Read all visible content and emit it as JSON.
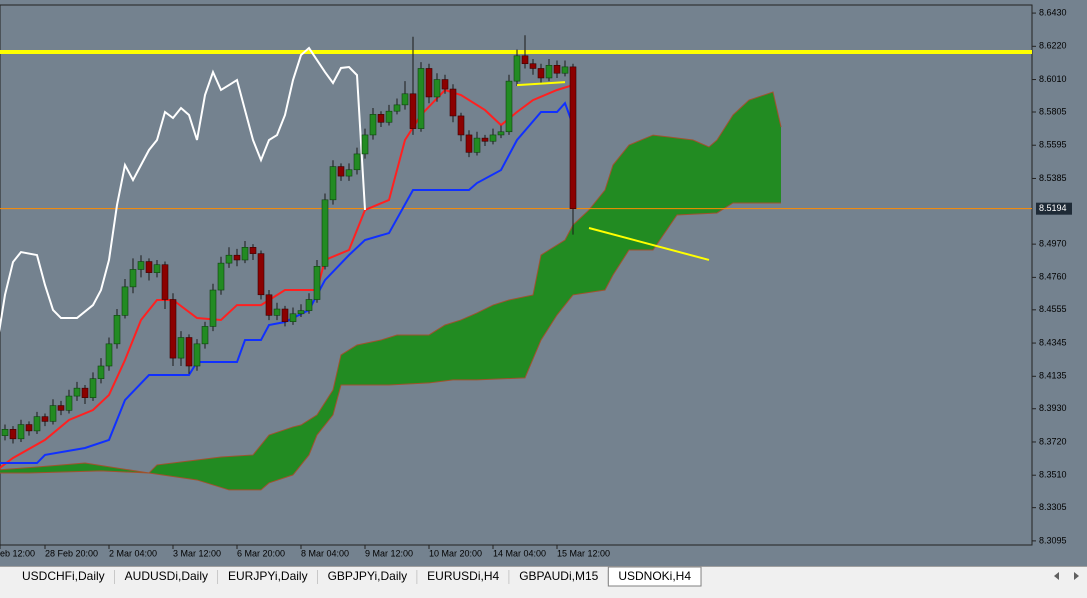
{
  "chart_data": {
    "type": "candlestick",
    "xlim": [
      0.375,
      129.375
    ],
    "ylim": [
      8.3069,
      8.6481
    ],
    "yticks": [
      {
        "value": 8.643,
        "label": "8.6430"
      },
      {
        "value": 8.622,
        "label": "8.6220"
      },
      {
        "value": 8.601,
        "label": "8.6010"
      },
      {
        "value": 8.5805,
        "label": "8.5805"
      },
      {
        "value": 8.5595,
        "label": "8.5595"
      },
      {
        "value": 8.5385,
        "label": "8.5385"
      },
      {
        "value": 8.497,
        "label": "8.4970"
      },
      {
        "value": 8.476,
        "label": "8.4760"
      },
      {
        "value": 8.4555,
        "label": "8.4555"
      },
      {
        "value": 8.4345,
        "label": "8.4345"
      },
      {
        "value": 8.4135,
        "label": "8.4135"
      },
      {
        "value": 8.393,
        "label": "8.3930"
      },
      {
        "value": 8.372,
        "label": "8.3720"
      },
      {
        "value": 8.351,
        "label": "8.3510"
      },
      {
        "value": 8.3305,
        "label": "8.3305"
      },
      {
        "value": 8.3095,
        "label": "8.3095"
      }
    ],
    "xticks": [
      {
        "value": 0.375,
        "label": "eb 12:00"
      },
      {
        "value": 6,
        "label": "28 Feb 20:00"
      },
      {
        "value": 14,
        "label": "2 Mar 04:00"
      },
      {
        "value": 22,
        "label": "3 Mar 12:00"
      },
      {
        "value": 30,
        "label": "6 Mar 20:00"
      },
      {
        "value": 38,
        "label": "8 Mar 04:00"
      },
      {
        "value": 46,
        "label": "9 Mar 12:00"
      },
      {
        "value": 54,
        "label": "10 Mar 20:00"
      },
      {
        "value": 62,
        "label": "14 Mar 04:00"
      },
      {
        "value": 70,
        "label": "15 Mar 12:00"
      }
    ],
    "up_color": "#228b22",
    "down_color": "#8b0000",
    "ohlc": [
      [
        8.372,
        8.379,
        8.37,
        8.376
      ],
      [
        8.376,
        8.383,
        8.373,
        8.38
      ],
      [
        8.38,
        8.382,
        8.371,
        8.374
      ],
      [
        8.374,
        8.386,
        8.372,
        8.383
      ],
      [
        8.383,
        8.385,
        8.376,
        8.379
      ],
      [
        8.379,
        8.391,
        8.377,
        8.388
      ],
      [
        8.388,
        8.39,
        8.382,
        8.385
      ],
      [
        8.385,
        8.399,
        8.383,
        8.395
      ],
      [
        8.395,
        8.398,
        8.389,
        8.392
      ],
      [
        8.392,
        8.405,
        8.39,
        8.401
      ],
      [
        8.401,
        8.41,
        8.398,
        8.406
      ],
      [
        8.406,
        8.408,
        8.396,
        8.4
      ],
      [
        8.4,
        8.416,
        8.398,
        8.412
      ],
      [
        8.412,
        8.425,
        8.409,
        8.42
      ],
      [
        8.42,
        8.438,
        8.417,
        8.434
      ],
      [
        8.434,
        8.456,
        8.431,
        8.452
      ],
      [
        8.452,
        8.475,
        8.45,
        8.47
      ],
      [
        8.47,
        8.488,
        8.466,
        8.481
      ],
      [
        8.481,
        8.49,
        8.476,
        8.486
      ],
      [
        8.486,
        8.488,
        8.474,
        8.479
      ],
      [
        8.479,
        8.487,
        8.476,
        8.484
      ],
      [
        8.484,
        8.486,
        8.456,
        8.462
      ],
      [
        8.462,
        8.466,
        8.42,
        8.425
      ],
      [
        8.425,
        8.442,
        8.42,
        8.438
      ],
      [
        8.438,
        8.44,
        8.415,
        8.42
      ],
      [
        8.42,
        8.437,
        8.417,
        8.434
      ],
      [
        8.434,
        8.448,
        8.431,
        8.445
      ],
      [
        8.445,
        8.472,
        8.442,
        8.468
      ],
      [
        8.468,
        8.489,
        8.465,
        8.485
      ],
      [
        8.485,
        8.495,
        8.482,
        8.49
      ],
      [
        8.49,
        8.494,
        8.483,
        8.487
      ],
      [
        8.487,
        8.499,
        8.485,
        8.495
      ],
      [
        8.495,
        8.497,
        8.487,
        8.491
      ],
      [
        8.491,
        8.493,
        8.462,
        8.465
      ],
      [
        8.465,
        8.468,
        8.449,
        8.452
      ],
      [
        8.452,
        8.46,
        8.449,
        8.456
      ],
      [
        8.456,
        8.458,
        8.445,
        8.448
      ],
      [
        8.448,
        8.457,
        8.446,
        8.453
      ],
      [
        8.453,
        8.459,
        8.451,
        8.455
      ],
      [
        8.455,
        8.466,
        8.453,
        8.462
      ],
      [
        8.462,
        8.487,
        8.46,
        8.483
      ],
      [
        8.483,
        8.529,
        8.481,
        8.525
      ],
      [
        8.525,
        8.55,
        8.522,
        8.546
      ],
      [
        8.546,
        8.548,
        8.537,
        8.54
      ],
      [
        8.54,
        8.548,
        8.537,
        8.544
      ],
      [
        8.544,
        8.558,
        8.541,
        8.554
      ],
      [
        8.554,
        8.57,
        8.551,
        8.566
      ],
      [
        8.566,
        8.583,
        8.563,
        8.579
      ],
      [
        8.579,
        8.581,
        8.571,
        8.574
      ],
      [
        8.574,
        8.585,
        8.572,
        8.581
      ],
      [
        8.581,
        8.589,
        8.579,
        8.585
      ],
      [
        8.585,
        8.6,
        8.582,
        8.592
      ],
      [
        8.592,
        8.628,
        8.566,
        8.57
      ],
      [
        8.57,
        8.612,
        8.568,
        8.608
      ],
      [
        8.608,
        8.611,
        8.586,
        8.59
      ],
      [
        8.59,
        8.605,
        8.587,
        8.601
      ],
      [
        8.601,
        8.604,
        8.592,
        8.595
      ],
      [
        8.595,
        8.598,
        8.574,
        8.578
      ],
      [
        8.578,
        8.58,
        8.562,
        8.566
      ],
      [
        8.566,
        8.569,
        8.552,
        8.555
      ],
      [
        8.555,
        8.568,
        8.553,
        8.564
      ],
      [
        8.564,
        8.566,
        8.559,
        8.562
      ],
      [
        8.562,
        8.57,
        8.56,
        8.566
      ],
      [
        8.566,
        8.572,
        8.564,
        8.568
      ],
      [
        8.568,
        8.604,
        8.566,
        8.6
      ],
      [
        8.6,
        8.62,
        8.597,
        8.616
      ],
      [
        8.616,
        8.629,
        8.608,
        8.611
      ],
      [
        8.611,
        8.614,
        8.604,
        8.608
      ],
      [
        8.608,
        8.611,
        8.599,
        8.602
      ],
      [
        8.602,
        8.614,
        8.6,
        8.61
      ],
      [
        8.61,
        8.613,
        8.602,
        8.605
      ],
      [
        8.605,
        8.613,
        8.603,
        8.609
      ],
      [
        8.609,
        8.611,
        8.503,
        8.5194
      ]
    ],
    "lines": [
      {
        "color": "#ff2020",
        "x": [
          0,
          2,
          6,
          9,
          12,
          14,
          16,
          18,
          20,
          22,
          25,
          28,
          30,
          33,
          36,
          40,
          41,
          44,
          46,
          49,
          51,
          53,
          56,
          58,
          61,
          63,
          65,
          67,
          70,
          72
        ],
        "values": [
          8.3543,
          8.3619,
          8.3733,
          8.3859,
          8.3922,
          8.4017,
          8.4238,
          8.4491,
          8.4617,
          8.4617,
          8.4503,
          8.4491,
          8.4585,
          8.4585,
          8.468,
          8.468,
          8.487,
          8.4933,
          8.5186,
          8.5249,
          8.5628,
          8.5786,
          8.5944,
          8.5912,
          8.5817,
          8.5722,
          8.5805,
          8.588,
          8.5944,
          8.5975
        ]
      },
      {
        "color": "#1030ff",
        "x": [
          0,
          5,
          6,
          11,
          14,
          16,
          19,
          24,
          25,
          30,
          31,
          33,
          34,
          36,
          39,
          41,
          44,
          46,
          49,
          52,
          59,
          60,
          63,
          65,
          68,
          70,
          71,
          72
        ],
        "values": [
          8.3587,
          8.3587,
          8.3638,
          8.3682,
          8.3733,
          8.3985,
          8.4143,
          8.4143,
          8.4225,
          8.4225,
          8.4364,
          8.4364,
          8.4459,
          8.4478,
          8.4554,
          8.4743,
          8.4901,
          8.4996,
          8.504,
          8.5312,
          8.5312,
          8.5356,
          8.5438,
          8.5628,
          8.5805,
          8.5805,
          8.5861,
          8.5722
        ]
      },
      {
        "color": "#ffffff",
        "x": [
          0,
          1,
          2,
          3,
          5,
          6,
          7,
          8,
          10,
          12,
          13,
          14,
          15,
          16,
          17,
          18,
          19,
          20,
          21,
          22,
          23,
          24,
          25,
          26,
          27,
          28,
          29,
          30,
          31,
          32,
          33,
          34,
          35,
          36,
          37,
          38,
          39,
          40,
          41,
          42,
          43,
          44,
          45,
          46
        ],
        "values": [
          8.4333,
          8.465,
          8.4857,
          8.492,
          8.4901,
          8.4712,
          8.4554,
          8.4503,
          8.4503,
          8.4585,
          8.468,
          8.487,
          8.5217,
          8.547,
          8.5375,
          8.547,
          8.5565,
          8.5628,
          8.5805,
          8.5767,
          8.583,
          8.5786,
          8.5628,
          8.5912,
          8.6057,
          8.5944,
          8.5975,
          8.6007,
          8.5817,
          8.5628,
          8.5501,
          8.5628,
          8.5659,
          8.5786,
          8.6007,
          8.6165,
          8.6209,
          8.6133,
          8.6057,
          8.5988,
          8.6083,
          8.6089,
          8.6038,
          8.5186
        ]
      }
    ],
    "cloud": {
      "color": "#228b22",
      "span_a": {
        "color": "#a0522d",
        "x": [
          0,
          5,
          11,
          19,
          20,
          25,
          28,
          32,
          34,
          37,
          38,
          40,
          42,
          43,
          45,
          48,
          50,
          54,
          56,
          58,
          60,
          62,
          64,
          67,
          68,
          69,
          71,
          72,
          74,
          76,
          77,
          79,
          82,
          84,
          87,
          89,
          90,
          92,
          94,
          97,
          98
        ],
        "values": [
          8.3543,
          8.3562,
          8.3587,
          8.3524,
          8.3575,
          8.3606,
          8.3625,
          8.3638,
          8.3764,
          8.3815,
          8.3827,
          8.3891,
          8.4049,
          8.427,
          8.4333,
          8.4364,
          8.4396,
          8.4396,
          8.4459,
          8.4491,
          8.4535,
          8.4585,
          8.4617,
          8.4649,
          8.4901,
          8.4933,
          8.4996,
          8.5091,
          8.5186,
          8.5312,
          8.547,
          8.5596,
          8.5659,
          8.5647,
          8.5628,
          8.5584,
          8.5628,
          8.5786,
          8.588,
          8.5931,
          8.571
        ]
      },
      "span_b": {
        "color": "#a0522d",
        "x": [
          0,
          4,
          13,
          19,
          25,
          29,
          33,
          34,
          37,
          39,
          40,
          42,
          43,
          49,
          54,
          57,
          60,
          66,
          68,
          70,
          72,
          76,
          77,
          79,
          82,
          85,
          90,
          92,
          98
        ],
        "values": [
          8.3524,
          8.3524,
          8.3537,
          8.3524,
          8.348,
          8.3417,
          8.3417,
          8.3461,
          8.3512,
          8.3638,
          8.3764,
          8.3891,
          8.408,
          8.408,
          8.4093,
          8.4112,
          8.4112,
          8.4125,
          8.4364,
          8.4522,
          8.4649,
          8.468,
          8.4775,
          8.4933,
          8.4933,
          8.5154,
          8.5167,
          8.523,
          8.523
        ]
      }
    },
    "level": {
      "value": 8.6184,
      "color": "#ffff00"
    },
    "trendlines": [
      {
        "color": "#ffff00",
        "x": [
          74,
          89
        ],
        "values": [
          8.5072,
          8.487
        ]
      },
      {
        "color": "#ffff00",
        "x": [
          65,
          71
        ],
        "values": [
          8.5975,
          8.5994
        ]
      }
    ],
    "current_price": {
      "value": 8.5194,
      "label": "8.5194",
      "color": "#ff8c00"
    }
  },
  "tabs": [
    {
      "label": "USDCHFi,Daily",
      "active": false
    },
    {
      "label": "AUDUSDi,Daily",
      "active": false
    },
    {
      "label": "EURJPYi,Daily",
      "active": false
    },
    {
      "label": "GBPJPYi,Daily",
      "active": false
    },
    {
      "label": "EURUSDi,H4",
      "active": false
    },
    {
      "label": "GBPAUDi,M15",
      "active": false
    },
    {
      "label": "USDNOKi,H4",
      "active": true
    }
  ]
}
